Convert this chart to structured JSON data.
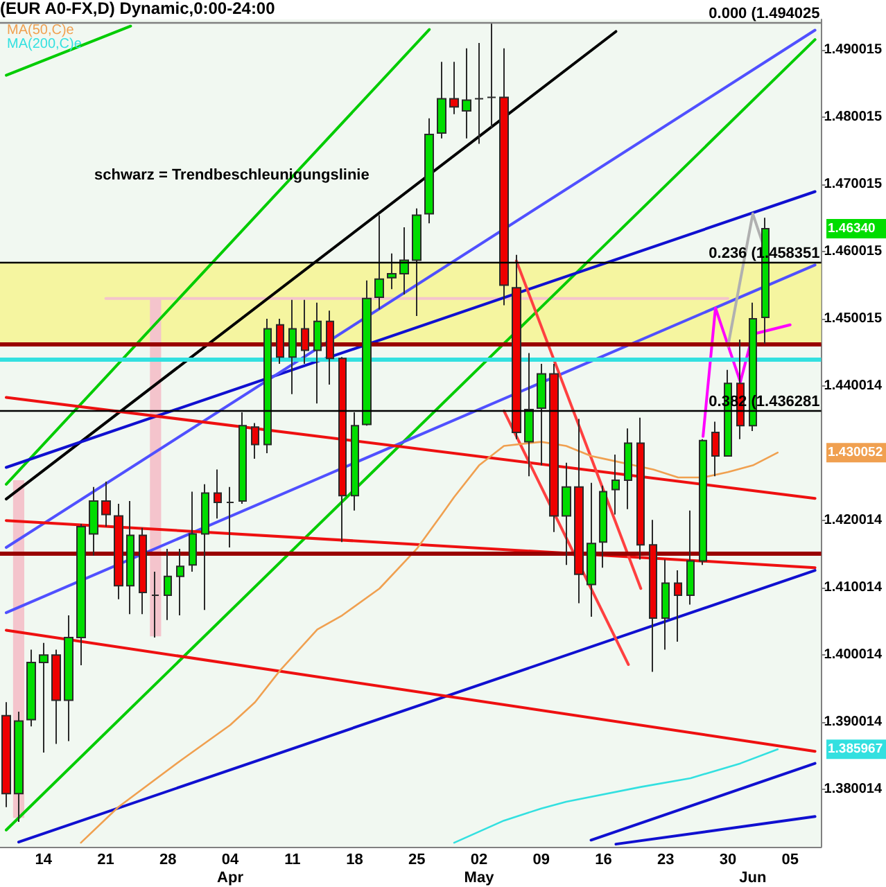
{
  "chart_data": {
    "type": "candlestick",
    "title": "(EUR A0-FX,D) Dynamic,0:00-24:00",
    "annotations": [
      "schwarz = Trendbeschleunigungslinie",
      "1.46340",
      "1.430052",
      "1.385967"
    ],
    "categories": [
      null,
      null,
      null,
      "14",
      null,
      null,
      null,
      null,
      "21",
      null,
      null,
      null,
      null,
      "28",
      null,
      null,
      null,
      null,
      "04\nApr",
      null,
      null,
      null,
      null,
      "11",
      null,
      null,
      null,
      null,
      "18",
      null,
      null,
      null,
      null,
      "25",
      null,
      null,
      null,
      null,
      "02\nMay",
      null,
      null,
      null,
      null,
      "09",
      null,
      null,
      null,
      null,
      "16",
      null,
      null,
      null,
      null,
      "23",
      null,
      null,
      null,
      null,
      "30",
      null,
      "\nJun",
      null,
      null,
      "05",
      null,
      null
    ],
    "ohlc": [
      [
        1.391,
        1.393,
        1.3774,
        1.3794
      ],
      [
        1.3794,
        1.3916,
        1.3752,
        1.3902
      ],
      [
        1.3904,
        1.4008,
        1.3894,
        1.3989
      ],
      [
        1.3989,
        1.4018,
        1.3855,
        1.4
      ],
      [
        1.4,
        1.4008,
        1.3868,
        1.3933
      ],
      [
        1.3933,
        1.4059,
        1.3872,
        1.4026
      ],
      [
        1.4026,
        1.4195,
        1.3985,
        1.4191
      ],
      [
        1.418,
        1.425,
        1.4148,
        1.4229
      ],
      [
        1.4229,
        1.4258,
        1.4191,
        1.4209
      ],
      [
        1.4207,
        1.4225,
        1.4083,
        1.4103
      ],
      [
        1.4103,
        1.4229,
        1.4061,
        1.4178
      ],
      [
        1.4178,
        1.4189,
        1.4061,
        1.4093
      ],
      [
        1.4089,
        1.4124,
        1.4026,
        1.4089
      ],
      [
        1.4089,
        1.4158,
        1.4052,
        1.4117
      ],
      [
        1.4117,
        1.4158,
        1.4059,
        1.4132
      ],
      [
        1.4134,
        1.4243,
        1.4124,
        1.418
      ],
      [
        1.418,
        1.4254,
        1.4067,
        1.4241
      ],
      [
        1.4241,
        1.4276,
        1.4203,
        1.4227
      ],
      [
        1.4227,
        1.425,
        1.416,
        1.4227
      ],
      [
        1.4229,
        1.4361,
        1.4225,
        1.4341
      ],
      [
        1.4339,
        1.4345,
        1.4292,
        1.4313
      ],
      [
        1.4313,
        1.45,
        1.43,
        1.4485
      ],
      [
        1.4491,
        1.45,
        1.4433,
        1.4443
      ],
      [
        1.4443,
        1.4528,
        1.4388,
        1.4485
      ],
      [
        1.4485,
        1.4528,
        1.4433,
        1.4453
      ],
      [
        1.4453,
        1.4524,
        1.4374,
        1.4496
      ],
      [
        1.4496,
        1.4512,
        1.4402,
        1.4441
      ],
      [
        1.4441,
        1.4443,
        1.4168,
        1.4237
      ],
      [
        1.4237,
        1.4361,
        1.4215,
        1.4341
      ],
      [
        1.4343,
        1.4557,
        1.4341,
        1.453
      ],
      [
        1.4532,
        1.4654,
        1.4514,
        1.4559
      ],
      [
        1.4561,
        1.4597,
        1.4544,
        1.4567
      ],
      [
        1.4567,
        1.4636,
        1.4536,
        1.4587
      ],
      [
        1.4587,
        1.4664,
        1.4504,
        1.4654
      ],
      [
        1.4656,
        1.4798,
        1.4642,
        1.4774
      ],
      [
        1.4776,
        1.4882,
        1.4768,
        1.4827
      ],
      [
        1.4827,
        1.4882,
        1.4804,
        1.4815
      ],
      [
        1.4809,
        1.4902,
        1.4768,
        1.4825
      ],
      [
        1.4827,
        1.491,
        1.476,
        1.4827
      ],
      [
        1.4829,
        1.4939,
        1.4784,
        1.4829
      ],
      [
        1.4829,
        1.4902,
        1.452,
        1.455
      ],
      [
        1.4546,
        1.4595,
        1.4321,
        1.4331
      ],
      [
        1.4317,
        1.4449,
        1.4266,
        1.4365
      ],
      [
        1.4367,
        1.4433,
        1.4282,
        1.4418
      ],
      [
        1.4418,
        1.4433,
        1.4183,
        1.4207
      ],
      [
        1.4207,
        1.4286,
        1.4134,
        1.425
      ],
      [
        1.425,
        1.4351,
        1.4077,
        1.412
      ],
      [
        1.4105,
        1.4256,
        1.4057,
        1.4166
      ],
      [
        1.4168,
        1.4252,
        1.413,
        1.4243
      ],
      [
        1.4246,
        1.4298,
        1.4209,
        1.426
      ],
      [
        1.426,
        1.4337,
        1.4217,
        1.4315
      ],
      [
        1.4315,
        1.4353,
        1.4142,
        1.4164
      ],
      [
        1.4164,
        1.4201,
        1.3975,
        1.4055
      ],
      [
        1.4055,
        1.4142,
        1.4008,
        1.4107
      ],
      [
        1.4107,
        1.4126,
        1.402,
        1.4089
      ],
      [
        1.4089,
        1.4215,
        1.4075,
        1.414
      ],
      [
        1.414,
        1.4321,
        1.4134,
        1.4319
      ],
      [
        1.4331,
        1.4347,
        1.4266,
        1.4296
      ],
      [
        1.4296,
        1.4424,
        1.4296,
        1.4404
      ],
      [
        1.4404,
        1.4469,
        1.4321,
        1.4341
      ],
      [
        1.4341,
        1.4524,
        1.4333,
        1.45
      ],
      [
        1.4502,
        1.465,
        1.4463,
        1.4634
      ],
      null,
      null,
      null,
      null
    ],
    "series": [
      {
        "name": "MA(50,C)e",
        "type": "line",
        "color": "#f0a050",
        "values": [
          null,
          null,
          null,
          null,
          null,
          null,
          1.3721,
          null,
          null,
          1.3774,
          null,
          null,
          null,
          null,
          1.3843,
          null,
          null,
          null,
          1.3896,
          null,
          1.393,
          null,
          1.3977,
          null,
          null,
          1.4038,
          null,
          1.4059,
          null,
          null,
          1.4099,
          null,
          null,
          1.4158,
          null,
          1.4209,
          1.4235,
          null,
          1.4282,
          null,
          1.4311,
          null,
          null,
          1.4317,
          null,
          1.4311,
          null,
          1.4296,
          1.4292,
          null,
          null,
          null,
          1.4276,
          null,
          1.4264,
          null,
          1.4264,
          null,
          1.4272,
          null,
          1.4282,
          null,
          1.4301,
          null,
          null,
          null
        ]
      },
      {
        "name": "MA(200,C)e",
        "type": "line",
        "color": "#33e0e0",
        "values": [
          null,
          null,
          null,
          null,
          null,
          null,
          null,
          null,
          null,
          null,
          null,
          null,
          null,
          null,
          null,
          null,
          null,
          null,
          null,
          null,
          null,
          null,
          null,
          null,
          null,
          null,
          null,
          null,
          null,
          null,
          null,
          null,
          null,
          null,
          null,
          null,
          1.3721,
          null,
          null,
          null,
          1.3754,
          null,
          null,
          1.3772,
          null,
          1.3782,
          null,
          null,
          null,
          null,
          null,
          1.3804,
          null,
          null,
          null,
          1.3817,
          null,
          null,
          null,
          1.3839,
          null,
          null,
          1.386,
          null,
          null,
          null
        ]
      },
      {
        "type": "bar",
        "color": "#f4c4cc",
        "base": [
          null,
          1.3758,
          null,
          null,
          null,
          null,
          null,
          null,
          null,
          null,
          null,
          null,
          1.4028,
          null,
          null,
          null,
          null,
          null,
          null,
          null,
          null,
          null,
          null,
          null,
          null,
          null,
          null,
          null,
          null,
          null,
          null,
          null,
          null,
          null,
          null,
          null,
          null,
          null,
          null,
          null,
          null,
          null,
          null,
          null,
          null,
          null,
          null,
          null,
          null,
          null,
          null,
          null,
          null,
          null,
          null,
          null,
          null,
          null,
          null,
          null,
          null,
          null,
          null,
          null,
          null,
          null
        ],
        "values": [
          null,
          0.0502,
          null,
          null,
          null,
          null,
          null,
          null,
          null,
          null,
          null,
          null,
          0.0502,
          null,
          null,
          null,
          null,
          null,
          null,
          null,
          null,
          null,
          null,
          null,
          null,
          null,
          null,
          null,
          null,
          null,
          null,
          null,
          null,
          null,
          null,
          null,
          null,
          null,
          null,
          null,
          null,
          null,
          null,
          null,
          null,
          null,
          null,
          null,
          null,
          null,
          null,
          null,
          null,
          null,
          null,
          null,
          null,
          null,
          null,
          null,
          null,
          null,
          null,
          null,
          null,
          null
        ]
      },
      {
        "type": "line",
        "color": "#f4c4cc",
        "values": [
          null,
          null,
          null,
          null,
          null,
          null,
          null,
          null,
          1.453,
          null,
          null,
          null,
          null,
          null,
          null,
          null,
          null,
          null,
          null,
          null,
          null,
          null,
          null,
          null,
          null,
          null,
          null,
          null,
          null,
          null,
          null,
          null,
          null,
          null,
          null,
          null,
          null,
          null,
          null,
          null,
          null,
          null,
          null,
          null,
          null,
          null,
          null,
          null,
          null,
          null,
          null,
          null,
          null,
          null,
          null,
          null,
          null,
          null,
          1.453,
          null,
          null,
          null,
          null,
          null,
          null,
          null
        ]
      },
      {
        "type": "line",
        "color": "#00cc00",
        "values": [
          1.4862,
          null,
          null,
          null,
          null,
          null,
          null,
          null,
          null,
          null,
          1.4935,
          null,
          null,
          null,
          null,
          null,
          null,
          null,
          null,
          null,
          null,
          null,
          null,
          null,
          null,
          null,
          null,
          null,
          null,
          null,
          null,
          null,
          null,
          null,
          null,
          null,
          null,
          null,
          null,
          null,
          null,
          null,
          null,
          null,
          null,
          null,
          null,
          null,
          null,
          null,
          null,
          null,
          null,
          null,
          null,
          null,
          null,
          null,
          null,
          null,
          null,
          null,
          null,
          null,
          null,
          null
        ]
      },
      {
        "type": "line",
        "color": "#00cc00",
        "values": [
          1.4254,
          null,
          null,
          null,
          null,
          null,
          null,
          null,
          null,
          null,
          null,
          null,
          null,
          null,
          null,
          null,
          null,
          null,
          null,
          null,
          null,
          null,
          null,
          null,
          null,
          null,
          null,
          null,
          null,
          null,
          null,
          null,
          null,
          null,
          1.493,
          null,
          null,
          null,
          null,
          null,
          null,
          null,
          null,
          null,
          null,
          null,
          null,
          null,
          null,
          null,
          null,
          null,
          null,
          null,
          null,
          null,
          null,
          null,
          null,
          null,
          null,
          null,
          null,
          null,
          null,
          null
        ]
      },
      {
        "type": "line",
        "color": "#00cc00",
        "values": [
          1.374,
          null,
          null,
          null,
          null,
          null,
          null,
          null,
          null,
          null,
          null,
          null,
          null,
          null,
          null,
          null,
          null,
          null,
          null,
          null,
          null,
          null,
          null,
          null,
          null,
          null,
          null,
          null,
          null,
          null,
          null,
          null,
          null,
          null,
          null,
          null,
          null,
          null,
          null,
          null,
          null,
          null,
          null,
          null,
          null,
          null,
          null,
          null,
          null,
          null,
          null,
          null,
          null,
          null,
          null,
          null,
          null,
          null,
          null,
          null,
          null,
          null,
          null,
          null,
          null,
          1.4915
        ]
      },
      {
        "type": "line",
        "color": "#000000",
        "values": [
          1.4232,
          null,
          null,
          null,
          null,
          null,
          null,
          null,
          null,
          null,
          null,
          null,
          null,
          null,
          null,
          null,
          null,
          null,
          null,
          null,
          null,
          null,
          null,
          null,
          null,
          null,
          null,
          null,
          null,
          null,
          null,
          null,
          null,
          null,
          null,
          null,
          null,
          null,
          null,
          null,
          null,
          null,
          null,
          null,
          null,
          null,
          null,
          null,
          null,
          1.4927,
          null,
          null,
          null,
          null,
          null,
          null,
          null,
          null,
          null,
          null,
          null,
          null,
          null,
          null,
          null,
          null
        ]
      },
      {
        "type": "line",
        "color": "#1010d0",
        "values": [
          1.4279,
          null,
          null,
          null,
          null,
          null,
          null,
          null,
          null,
          null,
          null,
          null,
          null,
          null,
          null,
          null,
          null,
          null,
          null,
          null,
          null,
          null,
          null,
          null,
          null,
          null,
          null,
          null,
          null,
          null,
          null,
          null,
          null,
          null,
          null,
          null,
          null,
          null,
          null,
          null,
          null,
          null,
          null,
          null,
          null,
          null,
          null,
          null,
          null,
          null,
          null,
          null,
          null,
          null,
          null,
          null,
          null,
          null,
          null,
          null,
          null,
          null,
          null,
          null,
          null,
          1.4689
        ]
      },
      {
        "type": "line",
        "color": "#1010d0",
        "values": [
          null,
          1.3722,
          null,
          null,
          null,
          null,
          null,
          null,
          null,
          null,
          null,
          null,
          null,
          null,
          null,
          null,
          null,
          null,
          null,
          null,
          null,
          null,
          null,
          null,
          null,
          null,
          null,
          null,
          null,
          null,
          null,
          null,
          null,
          null,
          null,
          null,
          null,
          null,
          null,
          null,
          null,
          null,
          null,
          null,
          null,
          null,
          null,
          null,
          null,
          null,
          null,
          null,
          null,
          null,
          null,
          null,
          null,
          null,
          null,
          null,
          null,
          null,
          null,
          null,
          null,
          1.4126
        ]
      },
      {
        "type": "line",
        "color": "#1010d0",
        "values": [
          null,
          null,
          null,
          null,
          null,
          null,
          null,
          null,
          null,
          null,
          null,
          null,
          null,
          null,
          null,
          null,
          null,
          null,
          null,
          null,
          null,
          null,
          null,
          null,
          null,
          null,
          null,
          null,
          null,
          null,
          null,
          null,
          null,
          null,
          null,
          null,
          null,
          null,
          null,
          null,
          null,
          null,
          null,
          null,
          null,
          null,
          null,
          1.3725,
          null,
          null,
          null,
          null,
          null,
          null,
          null,
          null,
          null,
          null,
          null,
          null,
          null,
          null,
          null,
          null,
          null,
          1.3839
        ]
      },
      {
        "type": "line",
        "color": "#1010d0",
        "values": [
          null,
          null,
          null,
          null,
          null,
          null,
          null,
          null,
          null,
          null,
          null,
          null,
          null,
          null,
          null,
          null,
          null,
          null,
          null,
          null,
          null,
          null,
          null,
          null,
          null,
          null,
          null,
          null,
          null,
          null,
          null,
          null,
          null,
          null,
          null,
          null,
          null,
          null,
          null,
          null,
          null,
          null,
          null,
          null,
          null,
          null,
          null,
          null,
          null,
          1.3719,
          null,
          null,
          null,
          null,
          null,
          null,
          null,
          null,
          null,
          null,
          null,
          null,
          null,
          null,
          null,
          1.376
        ]
      },
      {
        "type": "line",
        "color": "#5050ff",
        "values": [
          1.416,
          null,
          null,
          null,
          null,
          null,
          null,
          null,
          null,
          null,
          null,
          null,
          null,
          null,
          null,
          null,
          null,
          null,
          null,
          null,
          null,
          null,
          null,
          null,
          null,
          null,
          null,
          null,
          null,
          null,
          null,
          null,
          null,
          null,
          null,
          null,
          null,
          null,
          null,
          null,
          null,
          null,
          null,
          null,
          null,
          null,
          null,
          null,
          null,
          null,
          null,
          null,
          null,
          null,
          null,
          null,
          null,
          null,
          null,
          null,
          null,
          null,
          null,
          null,
          null,
          1.4929
        ]
      },
      {
        "type": "line",
        "color": "#5050ff",
        "values": [
          1.4063,
          null,
          null,
          null,
          null,
          null,
          null,
          null,
          null,
          null,
          null,
          null,
          null,
          null,
          null,
          null,
          null,
          null,
          null,
          null,
          null,
          null,
          null,
          null,
          null,
          null,
          null,
          null,
          null,
          null,
          null,
          null,
          null,
          null,
          null,
          null,
          null,
          null,
          null,
          null,
          null,
          null,
          null,
          null,
          null,
          null,
          null,
          null,
          null,
          null,
          null,
          null,
          null,
          null,
          null,
          null,
          null,
          null,
          null,
          null,
          null,
          null,
          null,
          null,
          null,
          1.458
        ]
      },
      {
        "type": "line",
        "color": "#ee1010",
        "values": [
          1.42,
          null,
          null,
          null,
          null,
          null,
          null,
          null,
          null,
          null,
          null,
          null,
          null,
          null,
          null,
          null,
          null,
          null,
          null,
          null,
          null,
          null,
          null,
          null,
          null,
          null,
          null,
          null,
          null,
          null,
          null,
          null,
          null,
          null,
          null,
          null,
          null,
          null,
          null,
          null,
          null,
          null,
          null,
          null,
          null,
          null,
          null,
          null,
          null,
          null,
          null,
          null,
          null,
          null,
          null,
          null,
          null,
          null,
          null,
          null,
          null,
          null,
          null,
          null,
          null,
          1.413
        ]
      },
      {
        "type": "line",
        "color": "#ee1010",
        "values": [
          1.4383,
          null,
          null,
          null,
          null,
          null,
          null,
          null,
          null,
          null,
          null,
          null,
          null,
          null,
          null,
          null,
          null,
          null,
          null,
          null,
          null,
          null,
          null,
          null,
          null,
          null,
          null,
          null,
          null,
          null,
          null,
          null,
          null,
          null,
          null,
          null,
          null,
          null,
          null,
          null,
          null,
          null,
          null,
          null,
          null,
          null,
          null,
          null,
          null,
          null,
          null,
          null,
          null,
          null,
          null,
          null,
          null,
          null,
          null,
          null,
          null,
          null,
          null,
          null,
          null,
          1.4233
        ]
      },
      {
        "type": "line",
        "color": "#ee1010",
        "values": [
          1.4037,
          null,
          null,
          null,
          null,
          null,
          null,
          null,
          null,
          null,
          null,
          null,
          null,
          null,
          null,
          null,
          null,
          null,
          null,
          null,
          null,
          null,
          null,
          null,
          null,
          null,
          null,
          null,
          null,
          null,
          null,
          null,
          null,
          null,
          null,
          null,
          null,
          null,
          null,
          null,
          null,
          null,
          null,
          null,
          null,
          null,
          null,
          null,
          null,
          null,
          null,
          null,
          null,
          null,
          null,
          null,
          null,
          null,
          null,
          null,
          null,
          null,
          null,
          null,
          null,
          1.3857
        ]
      },
      {
        "type": "line",
        "color": "#ff4040",
        "values": [
          null,
          null,
          null,
          null,
          null,
          null,
          null,
          null,
          null,
          null,
          null,
          null,
          null,
          null,
          null,
          null,
          null,
          null,
          null,
          null,
          null,
          null,
          null,
          null,
          null,
          null,
          null,
          null,
          null,
          null,
          null,
          null,
          null,
          null,
          null,
          null,
          null,
          null,
          null,
          null,
          null,
          1.4586,
          null,
          null,
          null,
          null,
          null,
          null,
          null,
          null,
          null,
          1.4099,
          null,
          null,
          null,
          null,
          null,
          null,
          null,
          null,
          null,
          null,
          null,
          null,
          null,
          null
        ]
      },
      {
        "type": "line",
        "color": "#ff4040",
        "values": [
          null,
          null,
          null,
          null,
          null,
          null,
          null,
          null,
          null,
          null,
          null,
          null,
          null,
          null,
          null,
          null,
          null,
          null,
          null,
          null,
          null,
          null,
          null,
          null,
          null,
          null,
          null,
          null,
          null,
          null,
          null,
          null,
          null,
          null,
          null,
          null,
          null,
          null,
          null,
          null,
          1.4363,
          null,
          null,
          null,
          null,
          null,
          null,
          null,
          null,
          null,
          1.3986,
          null,
          null,
          null,
          null,
          null,
          null,
          null,
          null,
          null,
          null,
          null,
          null,
          null,
          null,
          null
        ]
      },
      {
        "type": "line",
        "color": "#ff00ff",
        "values": [
          null,
          null,
          null,
          null,
          null,
          null,
          null,
          null,
          null,
          null,
          null,
          null,
          null,
          null,
          null,
          null,
          null,
          null,
          null,
          null,
          null,
          null,
          null,
          null,
          null,
          null,
          null,
          null,
          null,
          null,
          null,
          null,
          null,
          null,
          null,
          null,
          null,
          null,
          null,
          null,
          null,
          null,
          null,
          null,
          null,
          null,
          null,
          null,
          null,
          null,
          null,
          null,
          null,
          null,
          null,
          null,
          1.4325,
          1.4516,
          null,
          1.4406,
          1.4477,
          null,
          null,
          1.4491,
          null,
          null
        ]
      },
      {
        "type": "line",
        "color": "#b0b0b0",
        "values": [
          null,
          null,
          null,
          null,
          null,
          null,
          null,
          null,
          null,
          null,
          null,
          null,
          null,
          null,
          null,
          null,
          null,
          null,
          null,
          null,
          null,
          null,
          null,
          null,
          null,
          null,
          null,
          null,
          null,
          null,
          null,
          null,
          null,
          null,
          null,
          null,
          null,
          null,
          null,
          null,
          null,
          null,
          null,
          null,
          null,
          null,
          null,
          null,
          null,
          null,
          null,
          null,
          null,
          null,
          null,
          null,
          null,
          null,
          1.4459,
          null,
          1.4656,
          1.4601,
          null,
          null,
          null,
          null
        ]
      }
    ],
    "ylim": [
      1.3715,
      1.4945
    ],
    "yticks": [
      1.380014,
      1.390014,
      1.400014,
      1.410014,
      1.420014,
      1.440014,
      1.450015,
      1.460015,
      1.470015,
      1.480015,
      1.490015
    ],
    "ref_lines": [
      {
        "axis": "y",
        "value": 1.494025,
        "label": "0.000 (1.494025",
        "color": "#808080"
      },
      {
        "axis": "y",
        "value": 1.458351,
        "label": "0.236 (1.458351",
        "color": "#000000"
      },
      {
        "axis": "y",
        "value": 1.436281,
        "label": "0.382 (1.436281",
        "color": "#000000"
      },
      {
        "axis": "y",
        "value": 1.4462,
        "color": "#990000"
      },
      {
        "axis": "y",
        "value": 1.4439,
        "color": "#33e0e0"
      },
      {
        "axis": "y",
        "value": 1.4152,
        "color": "#990000"
      }
    ],
    "bands": [
      {
        "axis": "y",
        "from": 1.4463,
        "to": 1.4583,
        "color": "#f5f5a0"
      }
    ],
    "legend": "top left",
    "marker": "none"
  }
}
